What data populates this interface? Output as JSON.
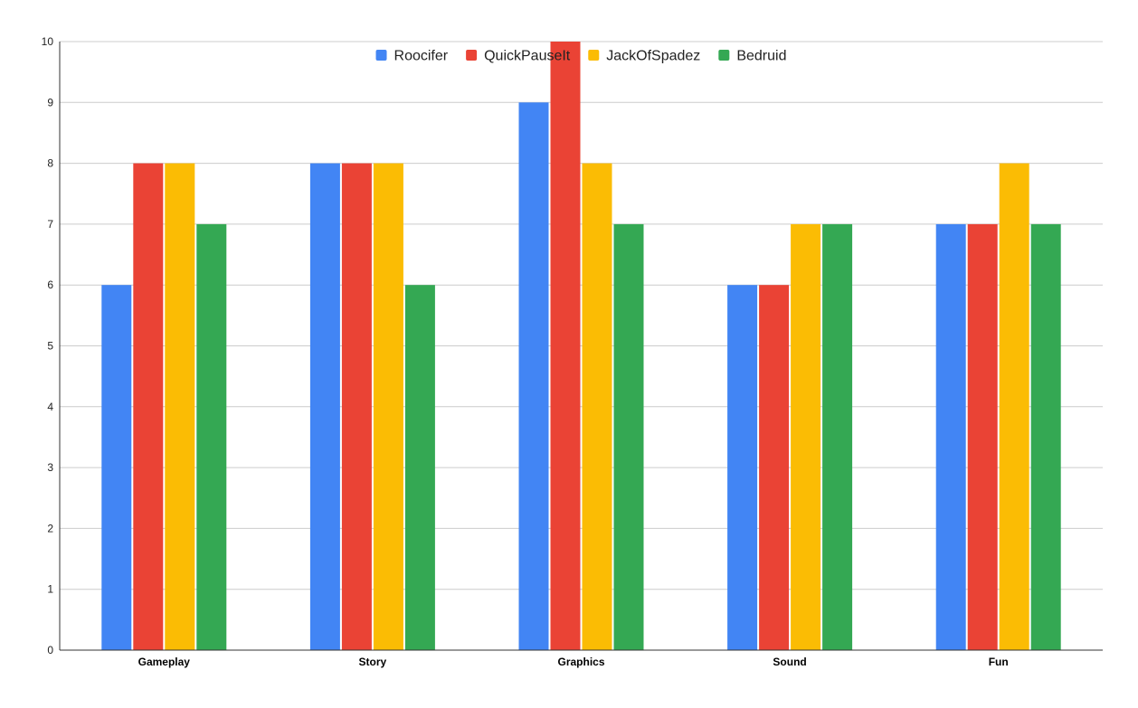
{
  "chart_data": {
    "type": "bar",
    "title": "",
    "xlabel": "",
    "ylabel": "",
    "categories": [
      "Gameplay",
      "Story",
      "Graphics",
      "Sound",
      "Fun"
    ],
    "series": [
      {
        "name": "Roocifer",
        "color": "#4285f4",
        "values": [
          6,
          8,
          9,
          6,
          7
        ]
      },
      {
        "name": "QuickPauseIt",
        "color": "#ea4335",
        "values": [
          8,
          8,
          10,
          6,
          7
        ]
      },
      {
        "name": "JackOfSpadez",
        "color": "#fbbc04",
        "values": [
          8,
          8,
          8,
          7,
          8
        ]
      },
      {
        "name": "Bedruid",
        "color": "#34a853",
        "values": [
          7,
          6,
          7,
          7,
          7
        ]
      }
    ],
    "ylim": [
      0,
      10
    ],
    "yticks": [
      "0",
      "1",
      "2",
      "3",
      "4",
      "5",
      "6",
      "7",
      "8",
      "9",
      "10"
    ],
    "grid": true,
    "legend_position": "top-center"
  }
}
